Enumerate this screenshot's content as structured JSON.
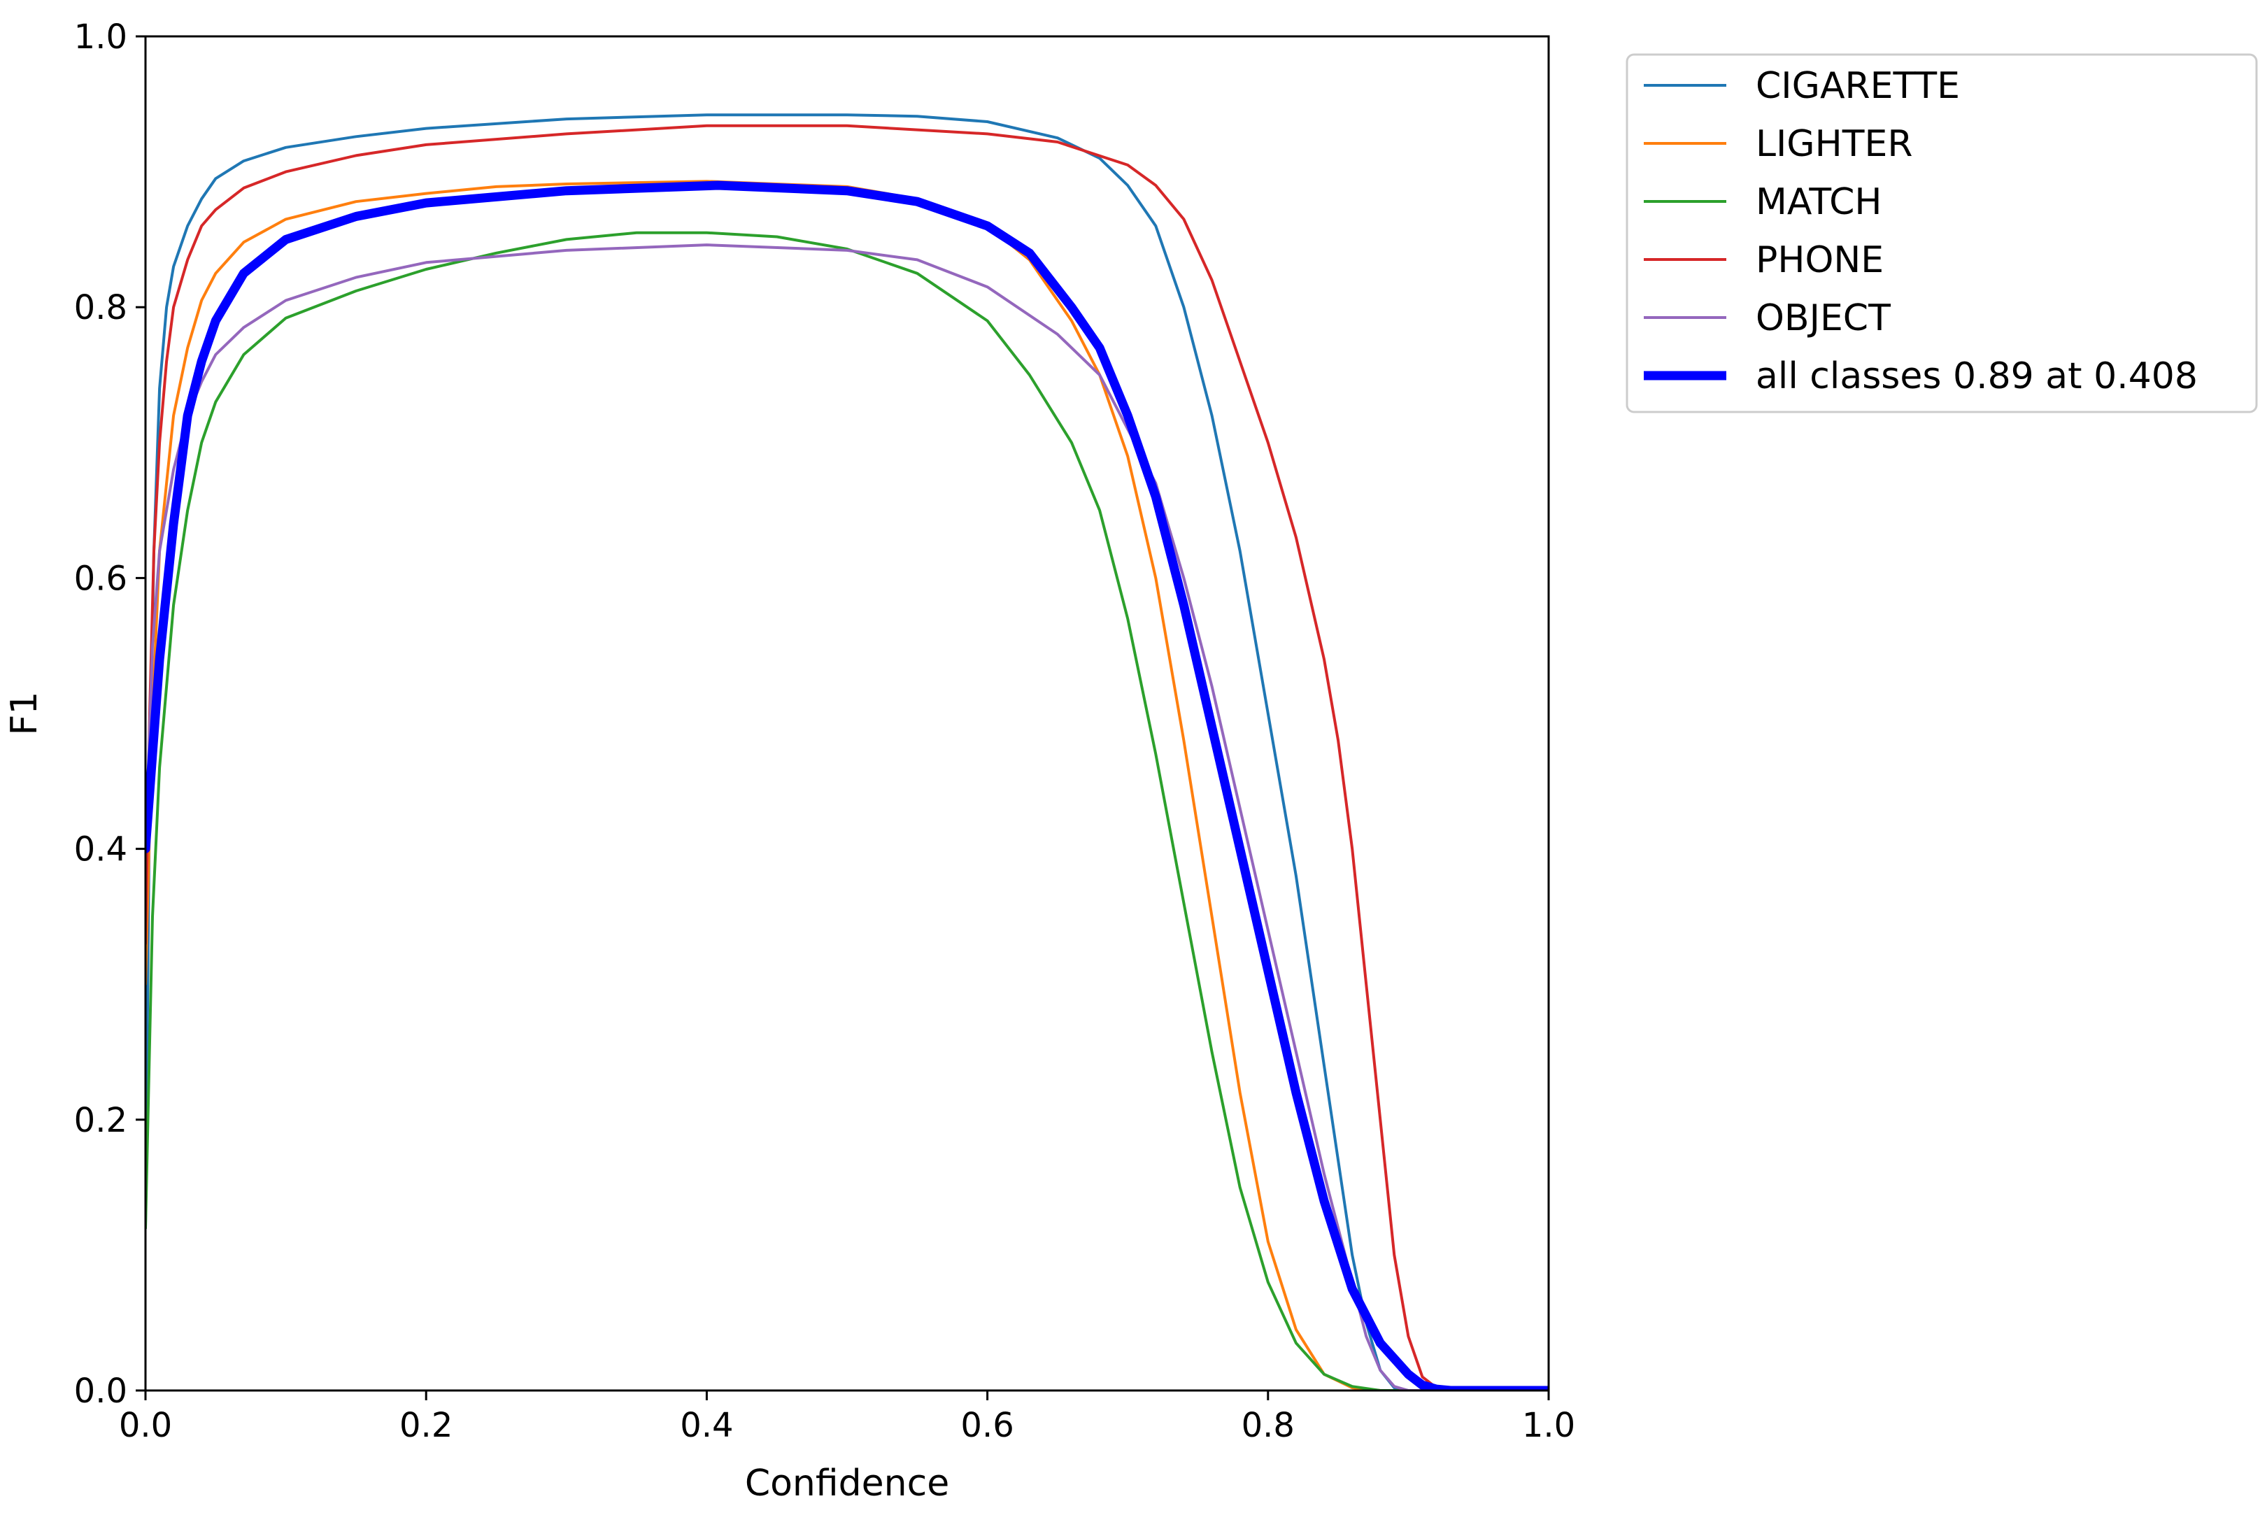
{
  "chart_data": {
    "type": "line",
    "title": "",
    "xlabel": "Confidence",
    "ylabel": "F1",
    "xlim": [
      0,
      1
    ],
    "ylim": [
      0,
      1
    ],
    "xticks": [
      "0.0",
      "0.2",
      "0.4",
      "0.6",
      "0.8",
      "1.0"
    ],
    "yticks": [
      "0.0",
      "0.2",
      "0.4",
      "0.6",
      "0.8",
      "1.0"
    ],
    "legend_position": "outside-top-right",
    "series": [
      {
        "name": "CIGARETTE",
        "color": "#1f77b4",
        "width": "thin",
        "points": [
          [
            0,
            0.12
          ],
          [
            0.003,
            0.45
          ],
          [
            0.006,
            0.62
          ],
          [
            0.01,
            0.74
          ],
          [
            0.015,
            0.8
          ],
          [
            0.02,
            0.83
          ],
          [
            0.03,
            0.86
          ],
          [
            0.04,
            0.88
          ],
          [
            0.05,
            0.895
          ],
          [
            0.07,
            0.908
          ],
          [
            0.1,
            0.918
          ],
          [
            0.15,
            0.926
          ],
          [
            0.2,
            0.932
          ],
          [
            0.3,
            0.939
          ],
          [
            0.4,
            0.942
          ],
          [
            0.5,
            0.942
          ],
          [
            0.55,
            0.941
          ],
          [
            0.6,
            0.937
          ],
          [
            0.65,
            0.925
          ],
          [
            0.68,
            0.91
          ],
          [
            0.7,
            0.89
          ],
          [
            0.72,
            0.86
          ],
          [
            0.74,
            0.8
          ],
          [
            0.76,
            0.72
          ],
          [
            0.78,
            0.62
          ],
          [
            0.8,
            0.5
          ],
          [
            0.82,
            0.38
          ],
          [
            0.84,
            0.24
          ],
          [
            0.86,
            0.1
          ],
          [
            0.87,
            0.05
          ],
          [
            0.88,
            0.015
          ],
          [
            0.89,
            0.002
          ],
          [
            0.9,
            0
          ],
          [
            1.0,
            0
          ]
        ]
      },
      {
        "name": "LIGHTER",
        "color": "#ff7f0e",
        "width": "thin",
        "points": [
          [
            0,
            0.3
          ],
          [
            0.005,
            0.5
          ],
          [
            0.01,
            0.62
          ],
          [
            0.02,
            0.72
          ],
          [
            0.03,
            0.77
          ],
          [
            0.04,
            0.805
          ],
          [
            0.05,
            0.825
          ],
          [
            0.07,
            0.848
          ],
          [
            0.1,
            0.865
          ],
          [
            0.15,
            0.878
          ],
          [
            0.2,
            0.884
          ],
          [
            0.25,
            0.889
          ],
          [
            0.3,
            0.891
          ],
          [
            0.4,
            0.893
          ],
          [
            0.5,
            0.889
          ],
          [
            0.55,
            0.88
          ],
          [
            0.6,
            0.86
          ],
          [
            0.63,
            0.835
          ],
          [
            0.66,
            0.79
          ],
          [
            0.68,
            0.75
          ],
          [
            0.7,
            0.69
          ],
          [
            0.72,
            0.6
          ],
          [
            0.74,
            0.48
          ],
          [
            0.76,
            0.35
          ],
          [
            0.78,
            0.22
          ],
          [
            0.8,
            0.11
          ],
          [
            0.82,
            0.045
          ],
          [
            0.84,
            0.012
          ],
          [
            0.86,
            0.002
          ],
          [
            0.88,
            0
          ],
          [
            1.0,
            0
          ]
        ]
      },
      {
        "name": "MATCH",
        "color": "#2ca02c",
        "width": "thin",
        "points": [
          [
            0,
            0.12
          ],
          [
            0.005,
            0.35
          ],
          [
            0.01,
            0.46
          ],
          [
            0.02,
            0.58
          ],
          [
            0.03,
            0.65
          ],
          [
            0.04,
            0.7
          ],
          [
            0.05,
            0.73
          ],
          [
            0.07,
            0.765
          ],
          [
            0.1,
            0.792
          ],
          [
            0.15,
            0.812
          ],
          [
            0.2,
            0.828
          ],
          [
            0.25,
            0.84
          ],
          [
            0.3,
            0.85
          ],
          [
            0.35,
            0.855
          ],
          [
            0.4,
            0.855
          ],
          [
            0.45,
            0.852
          ],
          [
            0.5,
            0.843
          ],
          [
            0.55,
            0.825
          ],
          [
            0.6,
            0.79
          ],
          [
            0.63,
            0.75
          ],
          [
            0.66,
            0.7
          ],
          [
            0.68,
            0.65
          ],
          [
            0.7,
            0.57
          ],
          [
            0.72,
            0.47
          ],
          [
            0.74,
            0.36
          ],
          [
            0.76,
            0.25
          ],
          [
            0.78,
            0.15
          ],
          [
            0.8,
            0.08
          ],
          [
            0.82,
            0.035
          ],
          [
            0.84,
            0.012
          ],
          [
            0.86,
            0.003
          ],
          [
            0.88,
            0
          ],
          [
            1.0,
            0
          ]
        ]
      },
      {
        "name": "PHONE",
        "color": "#d62728",
        "width": "thin",
        "points": [
          [
            0,
            0.33
          ],
          [
            0.003,
            0.5
          ],
          [
            0.006,
            0.62
          ],
          [
            0.01,
            0.7
          ],
          [
            0.015,
            0.76
          ],
          [
            0.02,
            0.8
          ],
          [
            0.03,
            0.835
          ],
          [
            0.04,
            0.86
          ],
          [
            0.05,
            0.872
          ],
          [
            0.07,
            0.888
          ],
          [
            0.1,
            0.9
          ],
          [
            0.15,
            0.912
          ],
          [
            0.2,
            0.92
          ],
          [
            0.3,
            0.928
          ],
          [
            0.4,
            0.934
          ],
          [
            0.5,
            0.934
          ],
          [
            0.55,
            0.931
          ],
          [
            0.6,
            0.928
          ],
          [
            0.65,
            0.922
          ],
          [
            0.7,
            0.905
          ],
          [
            0.72,
            0.89
          ],
          [
            0.74,
            0.865
          ],
          [
            0.76,
            0.82
          ],
          [
            0.78,
            0.76
          ],
          [
            0.8,
            0.7
          ],
          [
            0.82,
            0.63
          ],
          [
            0.84,
            0.54
          ],
          [
            0.85,
            0.48
          ],
          [
            0.86,
            0.4
          ],
          [
            0.87,
            0.3
          ],
          [
            0.88,
            0.2
          ],
          [
            0.89,
            0.1
          ],
          [
            0.9,
            0.04
          ],
          [
            0.91,
            0.01
          ],
          [
            0.92,
            0.002
          ],
          [
            0.93,
            0
          ],
          [
            1.0,
            0
          ]
        ]
      },
      {
        "name": "OBJECT",
        "color": "#9467bd",
        "width": "thin",
        "points": [
          [
            0,
            0.4
          ],
          [
            0.005,
            0.55
          ],
          [
            0.01,
            0.62
          ],
          [
            0.02,
            0.68
          ],
          [
            0.03,
            0.72
          ],
          [
            0.04,
            0.745
          ],
          [
            0.05,
            0.765
          ],
          [
            0.07,
            0.785
          ],
          [
            0.1,
            0.805
          ],
          [
            0.15,
            0.822
          ],
          [
            0.2,
            0.833
          ],
          [
            0.3,
            0.842
          ],
          [
            0.4,
            0.846
          ],
          [
            0.5,
            0.842
          ],
          [
            0.55,
            0.835
          ],
          [
            0.6,
            0.815
          ],
          [
            0.65,
            0.78
          ],
          [
            0.68,
            0.75
          ],
          [
            0.7,
            0.71
          ],
          [
            0.72,
            0.67
          ],
          [
            0.74,
            0.6
          ],
          [
            0.76,
            0.52
          ],
          [
            0.78,
            0.43
          ],
          [
            0.8,
            0.34
          ],
          [
            0.82,
            0.25
          ],
          [
            0.84,
            0.16
          ],
          [
            0.86,
            0.08
          ],
          [
            0.87,
            0.04
          ],
          [
            0.88,
            0.015
          ],
          [
            0.89,
            0.003
          ],
          [
            0.9,
            0
          ],
          [
            1.0,
            0
          ]
        ]
      },
      {
        "name": "all classes 0.89 at 0.408",
        "color": "#0000ff",
        "width": "thick",
        "points": [
          [
            0,
            0.4
          ],
          [
            0.005,
            0.47
          ],
          [
            0.01,
            0.54
          ],
          [
            0.02,
            0.64
          ],
          [
            0.03,
            0.72
          ],
          [
            0.04,
            0.76
          ],
          [
            0.05,
            0.79
          ],
          [
            0.07,
            0.825
          ],
          [
            0.1,
            0.85
          ],
          [
            0.15,
            0.867
          ],
          [
            0.2,
            0.877
          ],
          [
            0.3,
            0.886
          ],
          [
            0.408,
            0.89
          ],
          [
            0.5,
            0.886
          ],
          [
            0.55,
            0.878
          ],
          [
            0.6,
            0.86
          ],
          [
            0.63,
            0.84
          ],
          [
            0.66,
            0.8
          ],
          [
            0.68,
            0.77
          ],
          [
            0.7,
            0.72
          ],
          [
            0.72,
            0.66
          ],
          [
            0.74,
            0.58
          ],
          [
            0.76,
            0.49
          ],
          [
            0.78,
            0.4
          ],
          [
            0.8,
            0.31
          ],
          [
            0.82,
            0.22
          ],
          [
            0.84,
            0.14
          ],
          [
            0.86,
            0.075
          ],
          [
            0.88,
            0.035
          ],
          [
            0.9,
            0.012
          ],
          [
            0.91,
            0.004
          ],
          [
            0.92,
            0.001
          ],
          [
            0.93,
            0
          ],
          [
            1.0,
            0
          ]
        ]
      }
    ]
  }
}
